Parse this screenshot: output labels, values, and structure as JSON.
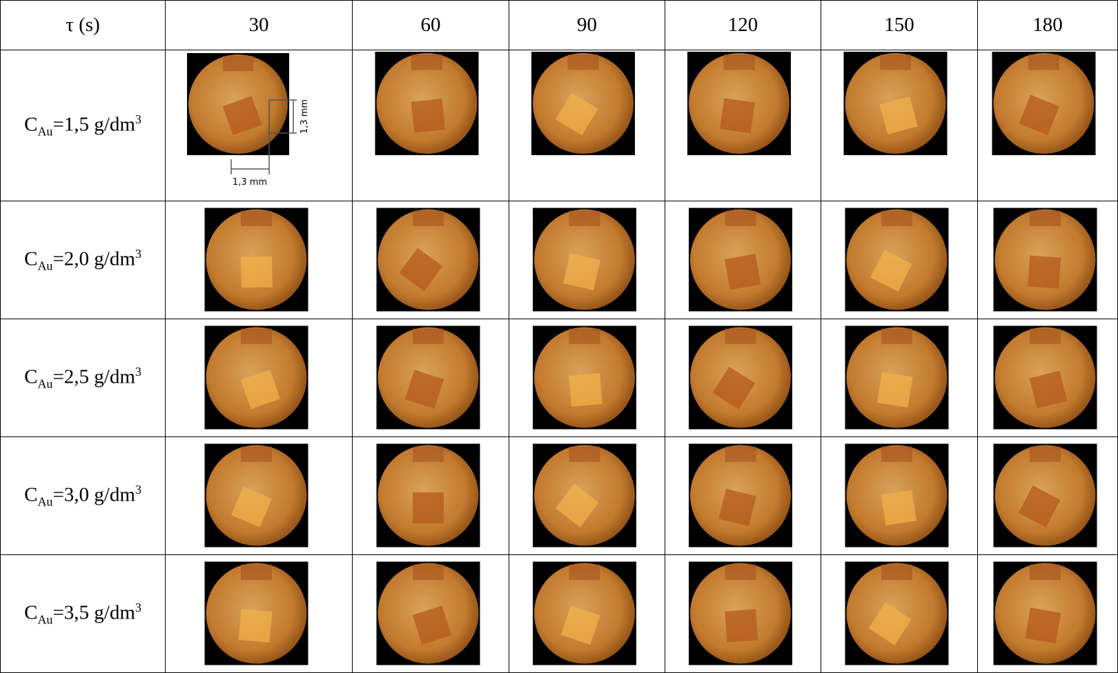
{
  "table": {
    "header": [
      "τ (s)",
      30,
      60,
      90,
      120,
      150,
      180
    ],
    "rows": [
      {
        "symbol": "C",
        "subscript": "Au",
        "value": "=1,5 g/dm",
        "superscript": "3"
      },
      {
        "symbol": "C",
        "subscript": "Au",
        "value": "=2,0 g/dm",
        "superscript": "3"
      },
      {
        "symbol": "C",
        "subscript": "Au",
        "value": "=2,5 g/dm",
        "superscript": "3"
      },
      {
        "symbol": "C",
        "subscript": "Au",
        "value": "=3,0 g/dm",
        "superscript": "3"
      },
      {
        "symbol": "C",
        "subscript": "Au",
        "value": "=3,5 g/dm",
        "superscript": "3"
      }
    ],
    "scale_labels": [
      "1,3 mm",
      "1,3 mm"
    ]
  }
}
